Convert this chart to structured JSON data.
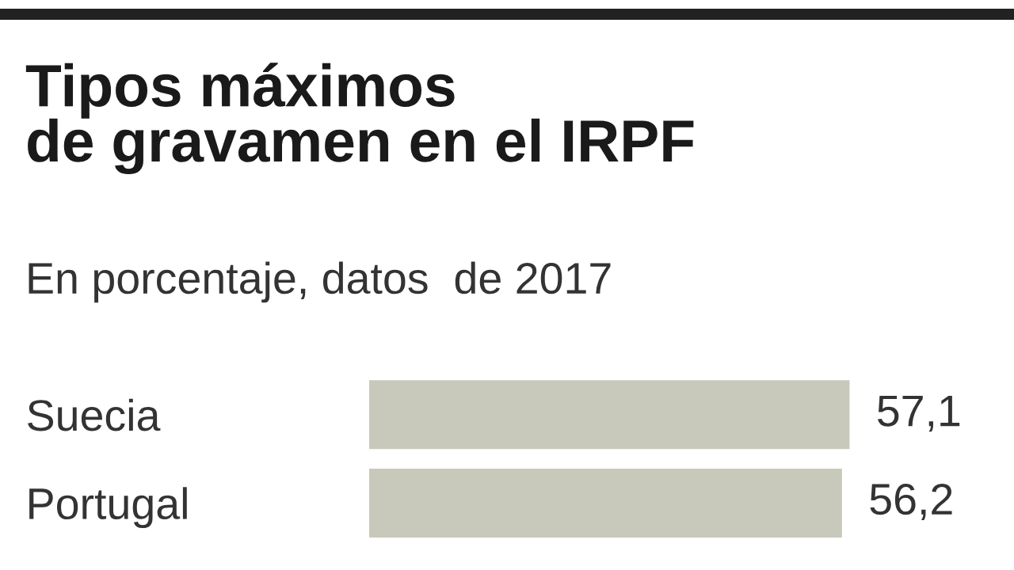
{
  "chart_data": {
    "type": "bar",
    "orientation": "horizontal",
    "title": "Tipos máximos\nde gravamen en el IRPF",
    "subtitle": "En porcentaje, datos  de 2017",
    "categories": [
      "Suecia",
      "Portugal"
    ],
    "values": [
      57.1,
      56.2
    ],
    "value_labels": [
      "57,1",
      "56,2"
    ],
    "color": "#c9c9bb",
    "grid": false,
    "legend": false
  }
}
